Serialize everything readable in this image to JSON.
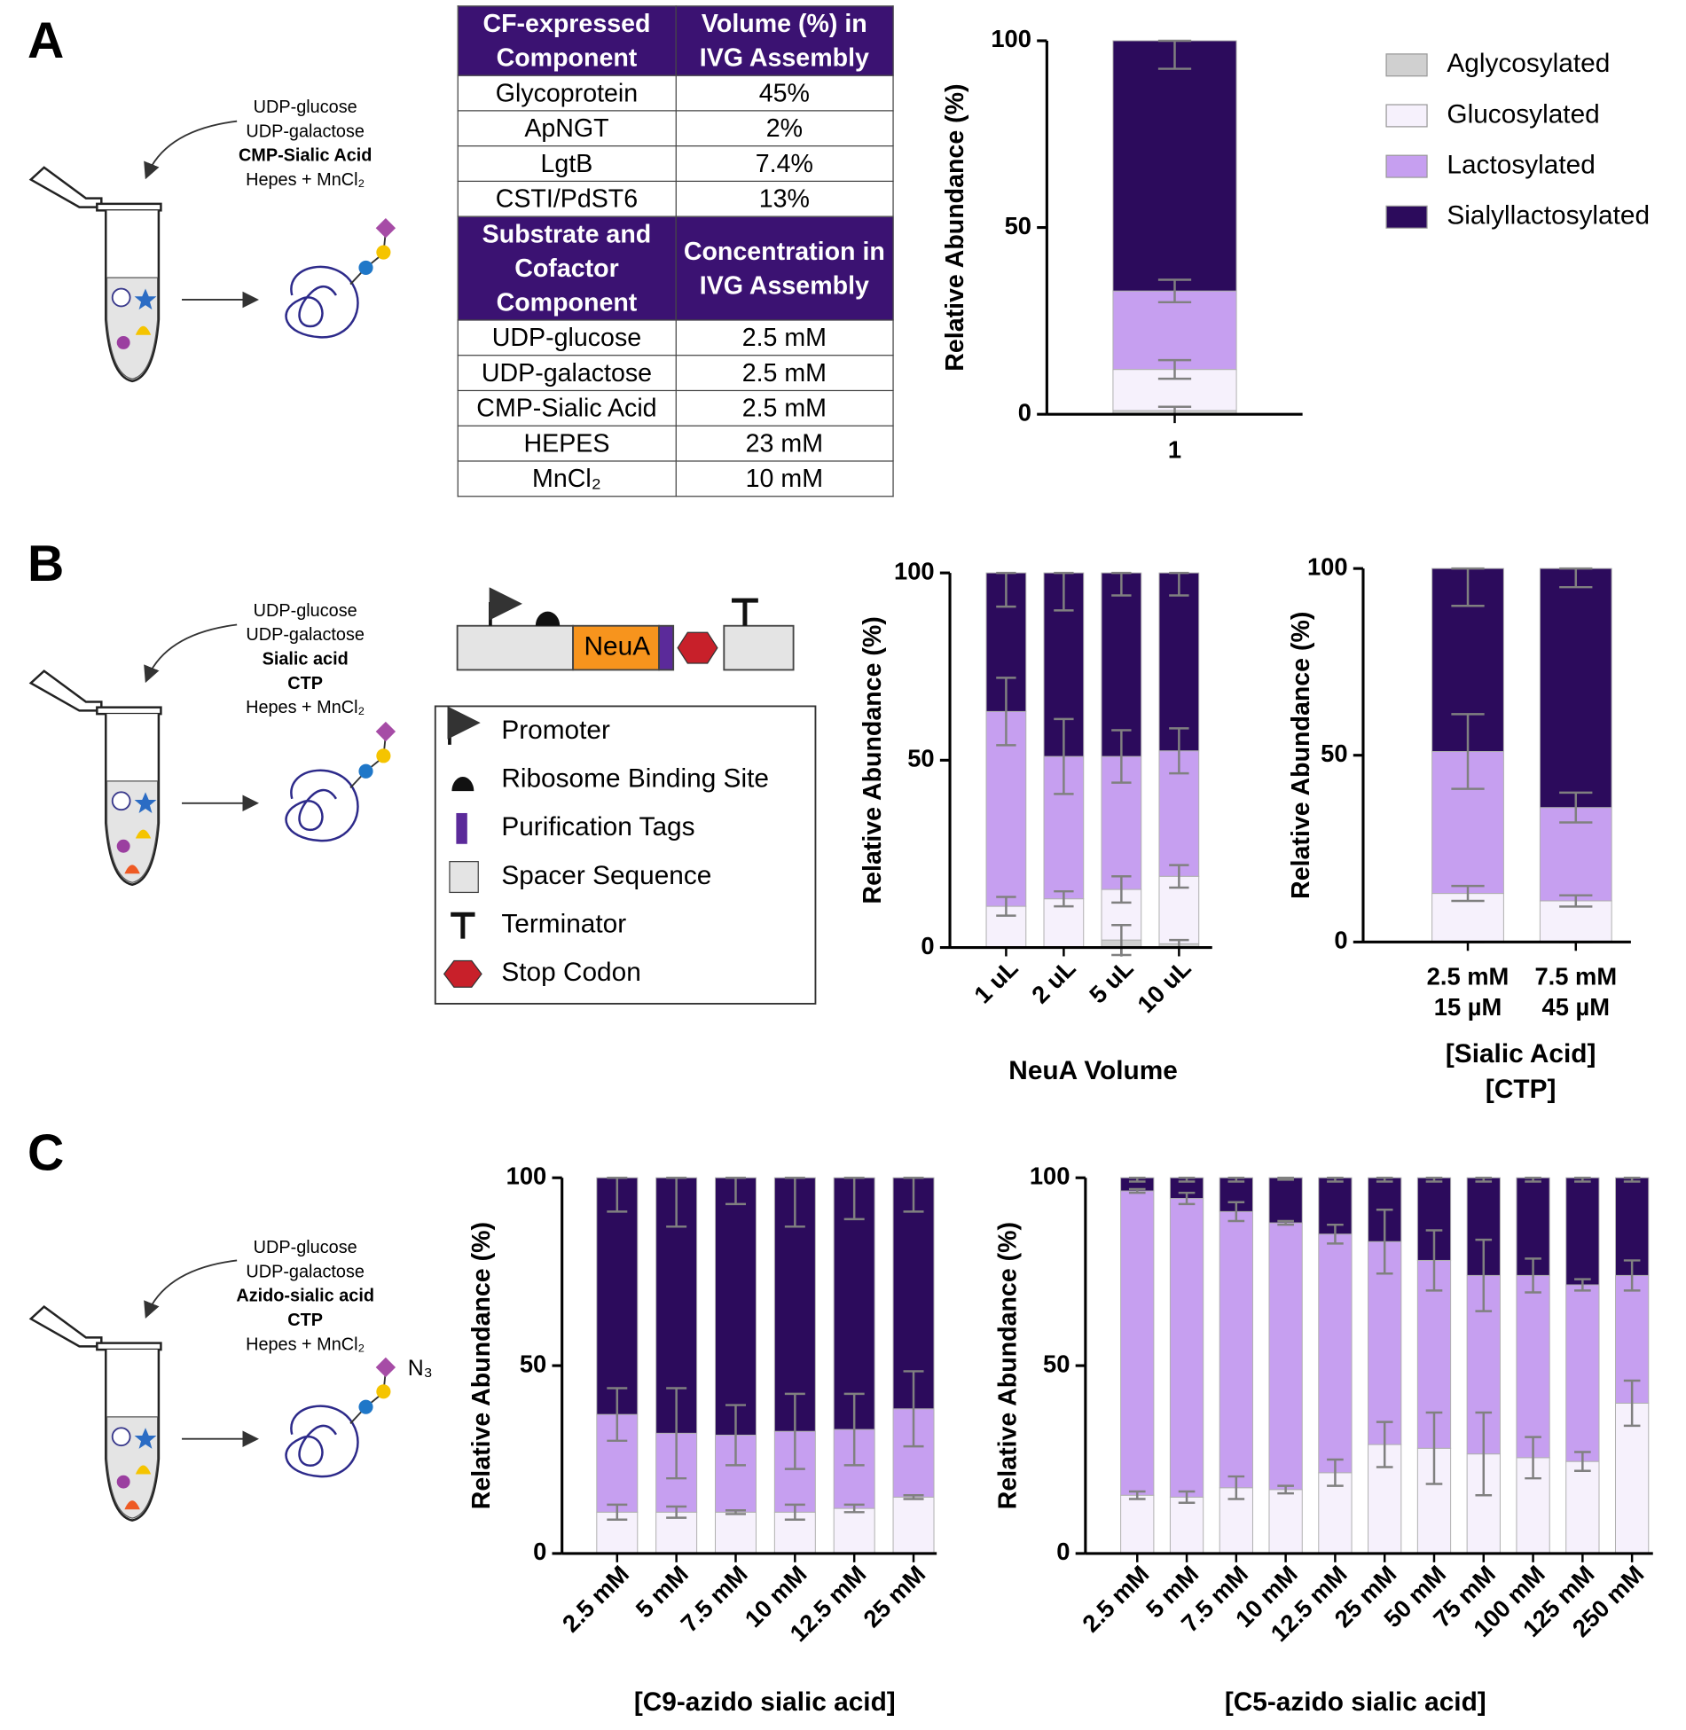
{
  "panel_labels": [
    "A",
    "B",
    "C"
  ],
  "tube_labels": [
    [
      {
        "text": "UDP-glucose"
      },
      {
        "text": "UDP-galactose"
      },
      {
        "text": "CMP-Sialic Acid",
        "bold": true
      },
      {
        "text": "Hepes + MnCl₂"
      }
    ],
    [
      {
        "text": "UDP-glucose"
      },
      {
        "text": "UDP-galactose"
      },
      {
        "text": "Sialic acid",
        "bold": true
      },
      {
        "text": "CTP",
        "bold": true
      },
      {
        "text": "Hepes + MnCl₂"
      }
    ],
    [
      {
        "text": "UDP-glucose"
      },
      {
        "text": "UDP-galactose"
      },
      {
        "text": "Azido-sialic acid",
        "bold": true
      },
      {
        "text": "CTP",
        "bold": true
      },
      {
        "text": "Hepes + MnCl₂"
      }
    ]
  ],
  "n3_label": "N₃",
  "table": {
    "sections": [
      {
        "header": [
          "CF-expressed Component",
          "Volume (%) in IVG Assembly"
        ],
        "rows": [
          [
            "Glycoprotein",
            "45%"
          ],
          [
            "ApNGT",
            "2%"
          ],
          [
            "LgtB",
            "7.4%"
          ],
          [
            "CSTI/PdST6",
            "13%"
          ]
        ]
      },
      {
        "header": [
          "Substrate and Cofactor Component",
          "Concentration in IVG Assembly"
        ],
        "rows": [
          [
            "UDP-glucose",
            "2.5 mM"
          ],
          [
            "UDP-galactose",
            "2.5 mM"
          ],
          [
            "CMP-Sialic Acid",
            "2.5 mM"
          ],
          [
            "HEPES",
            "23 mM"
          ],
          [
            "MnCl₂",
            "10 mM"
          ]
        ]
      }
    ]
  },
  "construct": {
    "gene": "NeuA",
    "legend": [
      "Promoter",
      "Ribosome Binding Site",
      "Purification Tags",
      "Spacer Sequence",
      "Terminator",
      "Stop Codon"
    ]
  },
  "chart_data": [
    {
      "type": "stacked_bar",
      "ylabel": "Relative Abundance (%)",
      "categories": [
        "1"
      ],
      "ylim": [
        0,
        100
      ],
      "yticks": [
        0,
        50,
        100
      ],
      "legend": true,
      "legend_position": "right",
      "series": [
        {
          "name": "Aglycosylated",
          "color": "#d0d0d0",
          "values": [
            1
          ],
          "errors": [
            1
          ]
        },
        {
          "name": "Glucosylated",
          "color": "#f6f1fc",
          "values": [
            11
          ],
          "errors": [
            2.5
          ]
        },
        {
          "name": "Lactosylated",
          "color": "#c69ff0",
          "values": [
            21
          ],
          "errors": [
            3
          ]
        },
        {
          "name": "Sialyllactosylated",
          "color": "#2c0b5c",
          "values": [
            67
          ],
          "errors": [
            7.5
          ]
        }
      ]
    },
    {
      "type": "stacked_bar",
      "ylabel": "Relative Abundance (%)",
      "xlabel": [
        "NeuA Volume"
      ],
      "rotated_xticks": true,
      "categories": [
        "1 uL",
        "2 uL",
        "5 uL",
        "10 uL"
      ],
      "ylim": [
        0,
        100
      ],
      "yticks": [
        0,
        50,
        100
      ],
      "series": [
        {
          "name": "Aglycosylated",
          "color": "#d0d0d0",
          "values": [
            0,
            0,
            2,
            1
          ],
          "errors": [
            0,
            0,
            4,
            1
          ]
        },
        {
          "name": "Glucosylated",
          "color": "#f6f1fc",
          "values": [
            11,
            13,
            13.5,
            18
          ],
          "errors": [
            2.5,
            2,
            3.5,
            3
          ]
        },
        {
          "name": "Lactosylated",
          "color": "#c69ff0",
          "values": [
            52,
            38,
            35.5,
            33.5
          ],
          "errors": [
            9,
            10,
            7,
            6
          ]
        },
        {
          "name": "Sialyllactosylated",
          "color": "#2c0b5c",
          "values": [
            37,
            49,
            49,
            47.5
          ],
          "errors": [
            9,
            10,
            6,
            6
          ]
        }
      ]
    },
    {
      "type": "stacked_bar",
      "ylabel": "Relative Abundance (%)",
      "xlabel": [
        "[Sialic Acid]",
        "[CTP]"
      ],
      "categories": [
        [
          "2.5 mM",
          "15 µM"
        ],
        [
          "7.5 mM",
          "45 µM"
        ]
      ],
      "ylim": [
        0,
        100
      ],
      "yticks": [
        0,
        50,
        100
      ],
      "series": [
        {
          "name": "Aglycosylated",
          "color": "#d0d0d0",
          "values": [
            0,
            0
          ],
          "errors": [
            0,
            0
          ]
        },
        {
          "name": "Glucosylated",
          "color": "#f6f1fc",
          "values": [
            13,
            11
          ],
          "errors": [
            2,
            1.5
          ]
        },
        {
          "name": "Lactosylated",
          "color": "#c69ff0",
          "values": [
            38,
            25
          ],
          "errors": [
            10,
            4
          ]
        },
        {
          "name": "Sialyllactosylated",
          "color": "#2c0b5c",
          "values": [
            49,
            64
          ],
          "errors": [
            10,
            5
          ]
        }
      ]
    },
    {
      "type": "stacked_bar",
      "ylabel": "Relative Abundance (%)",
      "xlabel": [
        "[C9-azido sialic acid]"
      ],
      "rotated_xticks": true,
      "categories": [
        "2.5 mM",
        "5 mM",
        "7.5 mM",
        "10 mM",
        "12.5 mM",
        "25 mM"
      ],
      "ylim": [
        0,
        100
      ],
      "yticks": [
        0,
        50,
        100
      ],
      "series": [
        {
          "name": "Aglycosylated",
          "color": "#d0d0d0",
          "values": [
            0,
            0,
            0,
            0,
            0,
            0
          ],
          "errors": [
            0,
            0,
            0,
            0,
            0,
            0
          ]
        },
        {
          "name": "Glucosylated",
          "color": "#f6f1fc",
          "values": [
            11,
            11,
            11,
            11,
            12,
            15
          ],
          "errors": [
            2,
            1.5,
            0.5,
            2,
            1,
            0.5
          ]
        },
        {
          "name": "Lactosylated",
          "color": "#c69ff0",
          "values": [
            26,
            21,
            20.5,
            21.5,
            21,
            23.5
          ],
          "errors": [
            7,
            12,
            8,
            10,
            9.5,
            10
          ]
        },
        {
          "name": "Sialyllactosylated",
          "color": "#2c0b5c",
          "values": [
            63,
            68,
            68.5,
            67.5,
            67,
            61.5
          ],
          "errors": [
            9,
            13,
            7,
            13,
            11,
            9
          ]
        }
      ]
    },
    {
      "type": "stacked_bar",
      "ylabel": "Relative Abundance (%)",
      "xlabel": [
        "[C5-azido sialic acid]"
      ],
      "rotated_xticks": true,
      "categories": [
        "2.5 mM",
        "5 mM",
        "7.5 mM",
        "10 mM",
        "12.5 mM",
        "25 mM",
        "50 mM",
        "75 mM",
        "100 mM",
        "125 mM",
        "250 mM"
      ],
      "ylim": [
        0,
        100
      ],
      "yticks": [
        0,
        50,
        100
      ],
      "series": [
        {
          "name": "Aglycosylated",
          "color": "#d0d0d0",
          "values": [
            0,
            0,
            0,
            0,
            0,
            0,
            0,
            0,
            0,
            0,
            0
          ],
          "errors": [
            0,
            0,
            0,
            0,
            0,
            0,
            0,
            0,
            0,
            0,
            0
          ]
        },
        {
          "name": "Glucosylated",
          "color": "#f6f1fc",
          "values": [
            15.5,
            15,
            17.5,
            17,
            21.5,
            29,
            28,
            26.5,
            25.5,
            24.5,
            40
          ],
          "errors": [
            1,
            1.5,
            3,
            1,
            3.5,
            6,
            9.5,
            11,
            5.5,
            2.5,
            6
          ]
        },
        {
          "name": "Lactosylated",
          "color": "#c69ff0",
          "values": [
            81,
            79.5,
            73.5,
            71,
            63.5,
            54,
            50,
            47.5,
            48.5,
            47,
            34
          ],
          "errors": [
            0.5,
            1.5,
            2.5,
            0.5,
            2.5,
            8.5,
            8,
            9.5,
            4.5,
            1.5,
            4
          ]
        },
        {
          "name": "Sialyllactosylated",
          "color": "#2c0b5c",
          "values": [
            3.5,
            5.5,
            9,
            12,
            15,
            17,
            22,
            26,
            26,
            28.5,
            26
          ],
          "errors": [
            1,
            1,
            1,
            0.5,
            1,
            1,
            1,
            1,
            1,
            1,
            1
          ]
        }
      ]
    }
  ]
}
